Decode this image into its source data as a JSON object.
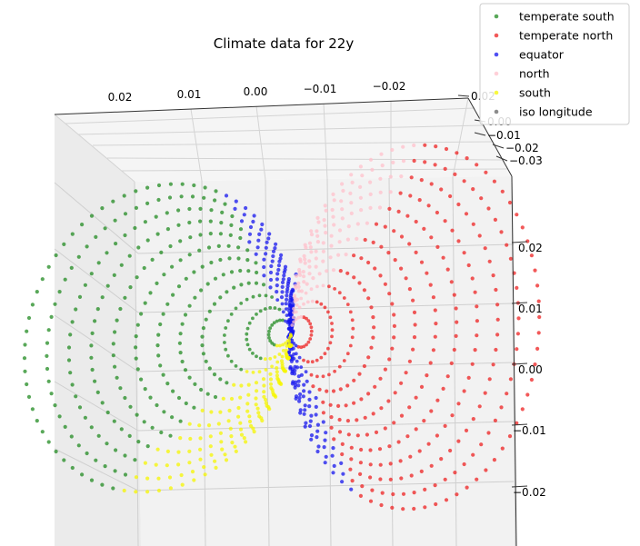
{
  "chart_data": {
    "type": "scatter",
    "projection": "3d",
    "title": "Climate data for 22y",
    "legend_placement": "top-right",
    "grid": true,
    "axes": {
      "x": {
        "ticks": [
          "0.02",
          "0.01",
          "0.00",
          "−0.01",
          "−0.02"
        ],
        "tick_values": [
          0.02,
          0.01,
          0.0,
          -0.01,
          -0.02
        ]
      },
      "y": {
        "ticks": [
          "0.02",
          "0.00",
          "−0.01",
          "−0.02",
          "−0.03"
        ],
        "tick_values": [
          0.02,
          0.0,
          -0.01,
          -0.02,
          -0.03
        ]
      },
      "z": {
        "ticks": [
          "0.02",
          "0.01",
          "0.00",
          "−0.01",
          "−0.02"
        ],
        "tick_values": [
          0.02,
          0.01,
          0.0,
          -0.01,
          -0.02
        ]
      }
    },
    "series": [
      {
        "name": "temperate south",
        "color": "#228B22",
        "lobe": "left",
        "region": "top"
      },
      {
        "name": "temperate north",
        "color": "#EE2222",
        "lobe": "right",
        "region": "bottom"
      },
      {
        "name": "equator",
        "color": "#1515EE",
        "lobe": "both",
        "region": "inner-diagonal"
      },
      {
        "name": "north",
        "color": "#FFC0CB",
        "lobe": "right",
        "region": "top"
      },
      {
        "name": "south",
        "color": "#F5F500",
        "lobe": "left",
        "region": "bottom"
      },
      {
        "name": "iso longitude",
        "color": "#666666",
        "lobe": "none",
        "region": "none"
      }
    ]
  }
}
